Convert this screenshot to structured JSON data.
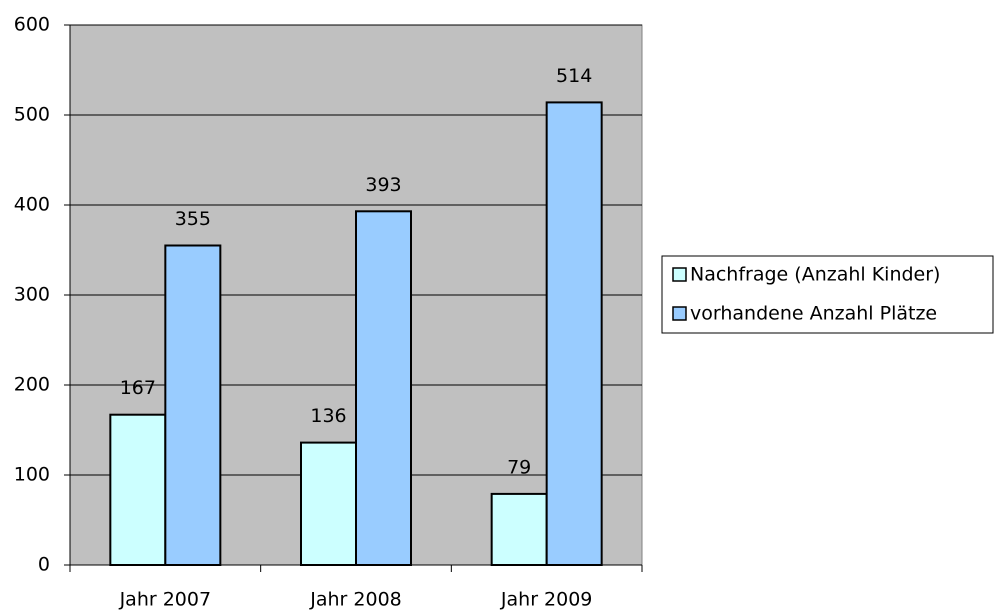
{
  "chart_data": {
    "type": "bar",
    "categories": [
      "Jahr 2007",
      "Jahr 2008",
      "Jahr 2009"
    ],
    "series": [
      {
        "name": "Nachfrage (Anzahl Kinder)",
        "color": "#ccffff",
        "values": [
          167,
          136,
          79
        ]
      },
      {
        "name": "vorhandene Anzahl Plätze",
        "color": "#99ccff",
        "values": [
          355,
          393,
          514
        ]
      }
    ],
    "ylim": [
      0,
      600
    ],
    "yticks": [
      0,
      100,
      200,
      300,
      400,
      500,
      600
    ],
    "grid": true,
    "legend": "right",
    "plot_background": "#c0c0c0"
  }
}
